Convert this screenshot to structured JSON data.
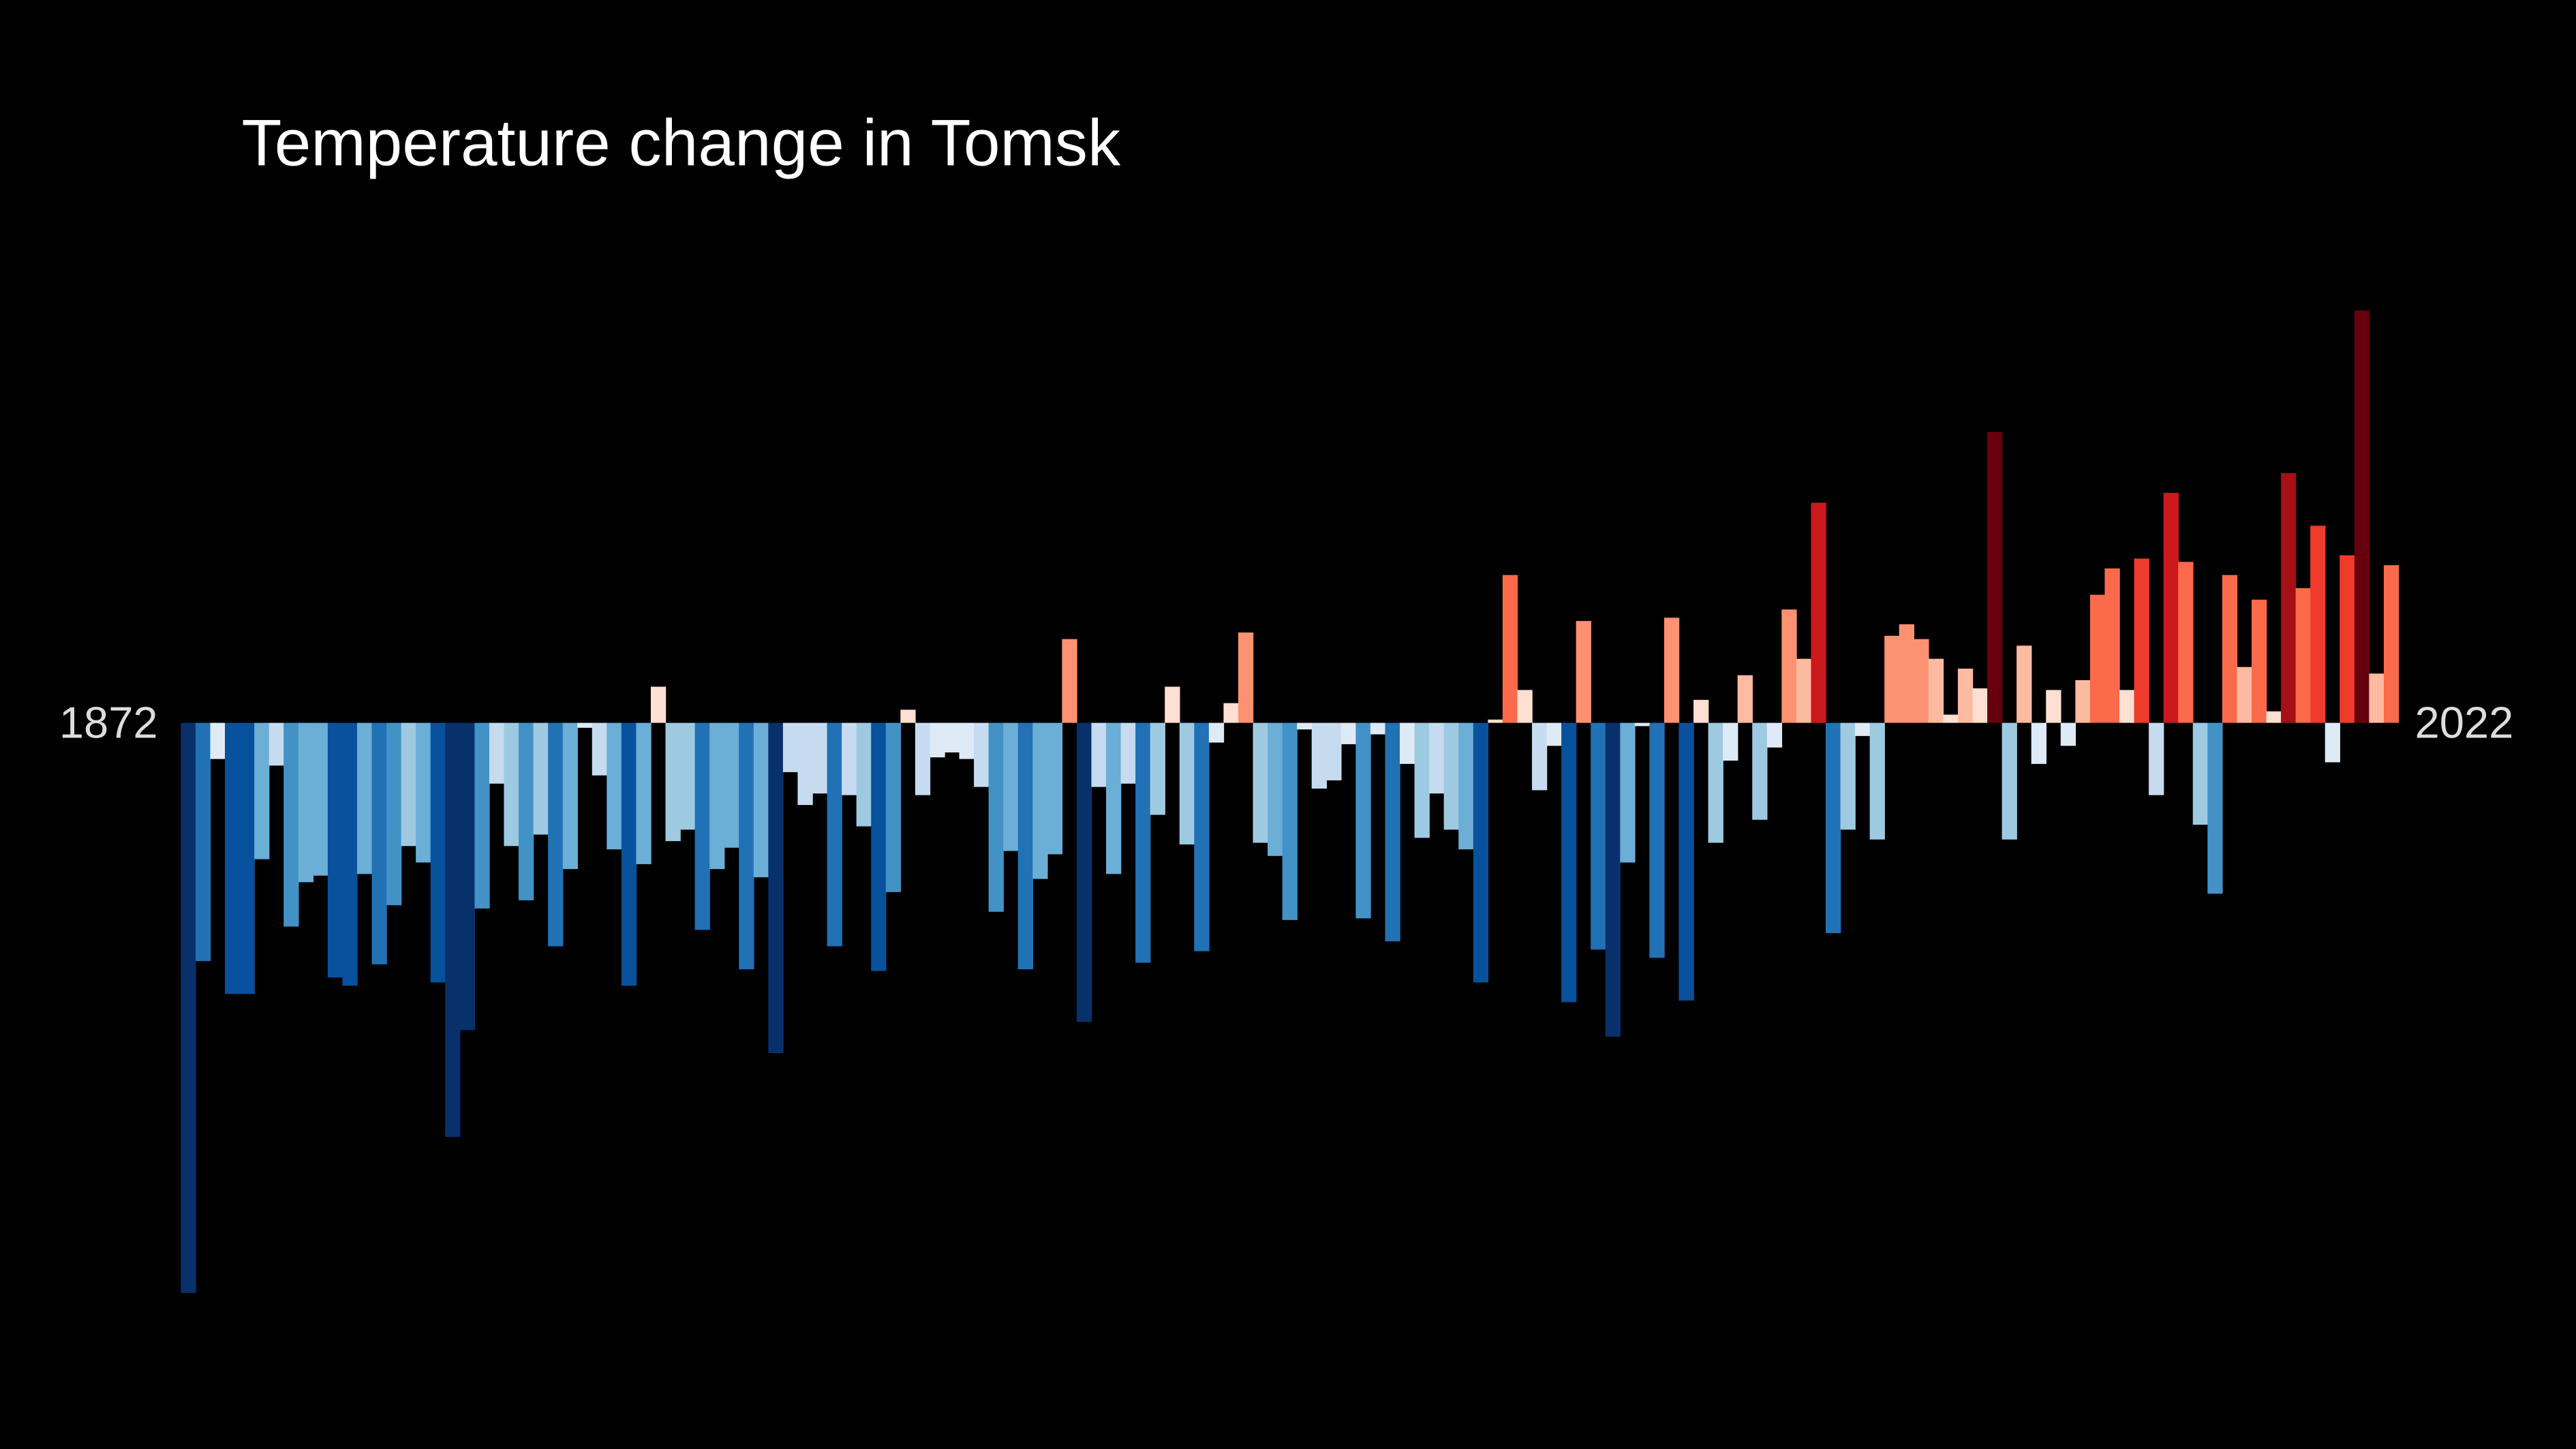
{
  "chart_data": {
    "type": "bar",
    "title": "Temperature change in Tomsk",
    "categories": [
      "1872",
      null,
      null,
      null,
      null,
      null,
      null,
      null,
      null,
      null,
      null,
      null,
      null,
      null,
      null,
      null,
      null,
      null,
      null,
      null,
      null,
      null,
      null,
      null,
      null,
      null,
      null,
      null,
      null,
      null,
      null,
      null,
      null,
      null,
      null,
      null,
      null,
      null,
      null,
      null,
      null,
      null,
      null,
      null,
      null,
      null,
      null,
      null,
      null,
      null,
      null,
      null,
      null,
      null,
      null,
      null,
      null,
      null,
      null,
      null,
      null,
      null,
      null,
      null,
      null,
      null,
      null,
      null,
      null,
      null,
      null,
      null,
      null,
      null,
      null,
      null,
      null,
      null,
      null,
      null,
      null,
      null,
      null,
      null,
      null,
      null,
      null,
      null,
      null,
      null,
      null,
      null,
      null,
      null,
      null,
      null,
      null,
      null,
      null,
      null,
      null,
      null,
      null,
      null,
      null,
      null,
      null,
      null,
      null,
      null,
      null,
      null,
      null,
      null,
      null,
      null,
      null,
      null,
      null,
      null,
      null,
      null,
      null,
      null,
      null,
      null,
      null,
      null,
      null,
      null,
      null,
      null,
      null,
      null,
      null,
      null,
      null,
      null,
      null,
      null,
      null,
      null,
      null,
      null,
      null,
      null,
      null,
      null,
      null,
      null,
      "2022"
    ],
    "values": [
      -3.47,
      -1.45,
      -0.22,
      -1.65,
      -1.65,
      -0.83,
      -0.26,
      -1.24,
      -0.97,
      -0.93,
      -1.55,
      -1.6,
      -0.92,
      -1.47,
      -1.11,
      -0.75,
      -0.85,
      -1.58,
      -2.52,
      -1.87,
      -1.13,
      -0.37,
      -0.75,
      -1.08,
      -0.68,
      -1.36,
      -0.89,
      -0.03,
      -0.32,
      -0.77,
      -1.6,
      -0.86,
      0.22,
      -0.72,
      -0.65,
      -1.26,
      -0.89,
      -0.76,
      -1.5,
      -0.94,
      -2.01,
      -0.3,
      -0.5,
      -0.43,
      -1.36,
      -0.44,
      -0.63,
      -1.51,
      -1.03,
      0.08,
      -0.44,
      -0.21,
      -0.18,
      -0.22,
      -0.39,
      -1.15,
      -0.78,
      -1.5,
      -0.95,
      -0.8,
      0.51,
      -1.82,
      -0.39,
      -0.92,
      -0.37,
      -1.46,
      -0.56,
      0.22,
      -0.74,
      -1.39,
      -0.12,
      0.12,
      0.55,
      -0.73,
      -0.81,
      -1.2,
      -0.04,
      -0.4,
      -0.35,
      -0.13,
      -1.19,
      -0.07,
      -1.33,
      -0.25,
      -0.7,
      -0.43,
      -0.65,
      -0.77,
      -1.58,
      0.02,
      0.9,
      0.2,
      -0.41,
      -0.14,
      -1.7,
      0.62,
      -1.38,
      -1.91,
      -0.85,
      -0.02,
      -1.43,
      0.64,
      -1.69,
      0.14,
      -0.73,
      -0.23,
      0.29,
      -0.59,
      -0.15,
      0.69,
      0.39,
      1.34,
      -1.28,
      -0.65,
      -0.08,
      -0.71,
      0.53,
      0.6,
      0.51,
      0.39,
      0.05,
      0.33,
      0.21,
      1.77,
      -0.71,
      0.47,
      -0.25,
      0.2,
      -0.14,
      0.26,
      0.78,
      0.94,
      0.2,
      1.0,
      -0.44,
      1.4,
      0.98,
      -0.62,
      -1.04,
      0.9,
      0.34,
      0.75,
      0.07,
      1.52,
      0.82,
      1.2,
      -0.24,
      1.02,
      2.51,
      0.3,
      0.96
    ],
    "ylim": [
      -3.7,
      2.9
    ],
    "colormap": [
      "#08306b",
      "#08519c",
      "#2171b5",
      "#4292c6",
      "#6baed6",
      "#9ecae1",
      "#c6dbef",
      "#deebf7",
      "#fee0d2",
      "#fcbba1",
      "#fc9272",
      "#fb6a4a",
      "#ef3b2c",
      "#cb181d",
      "#a50f15",
      "#67000d"
    ],
    "color_range": [
      -2,
      2
    ]
  }
}
